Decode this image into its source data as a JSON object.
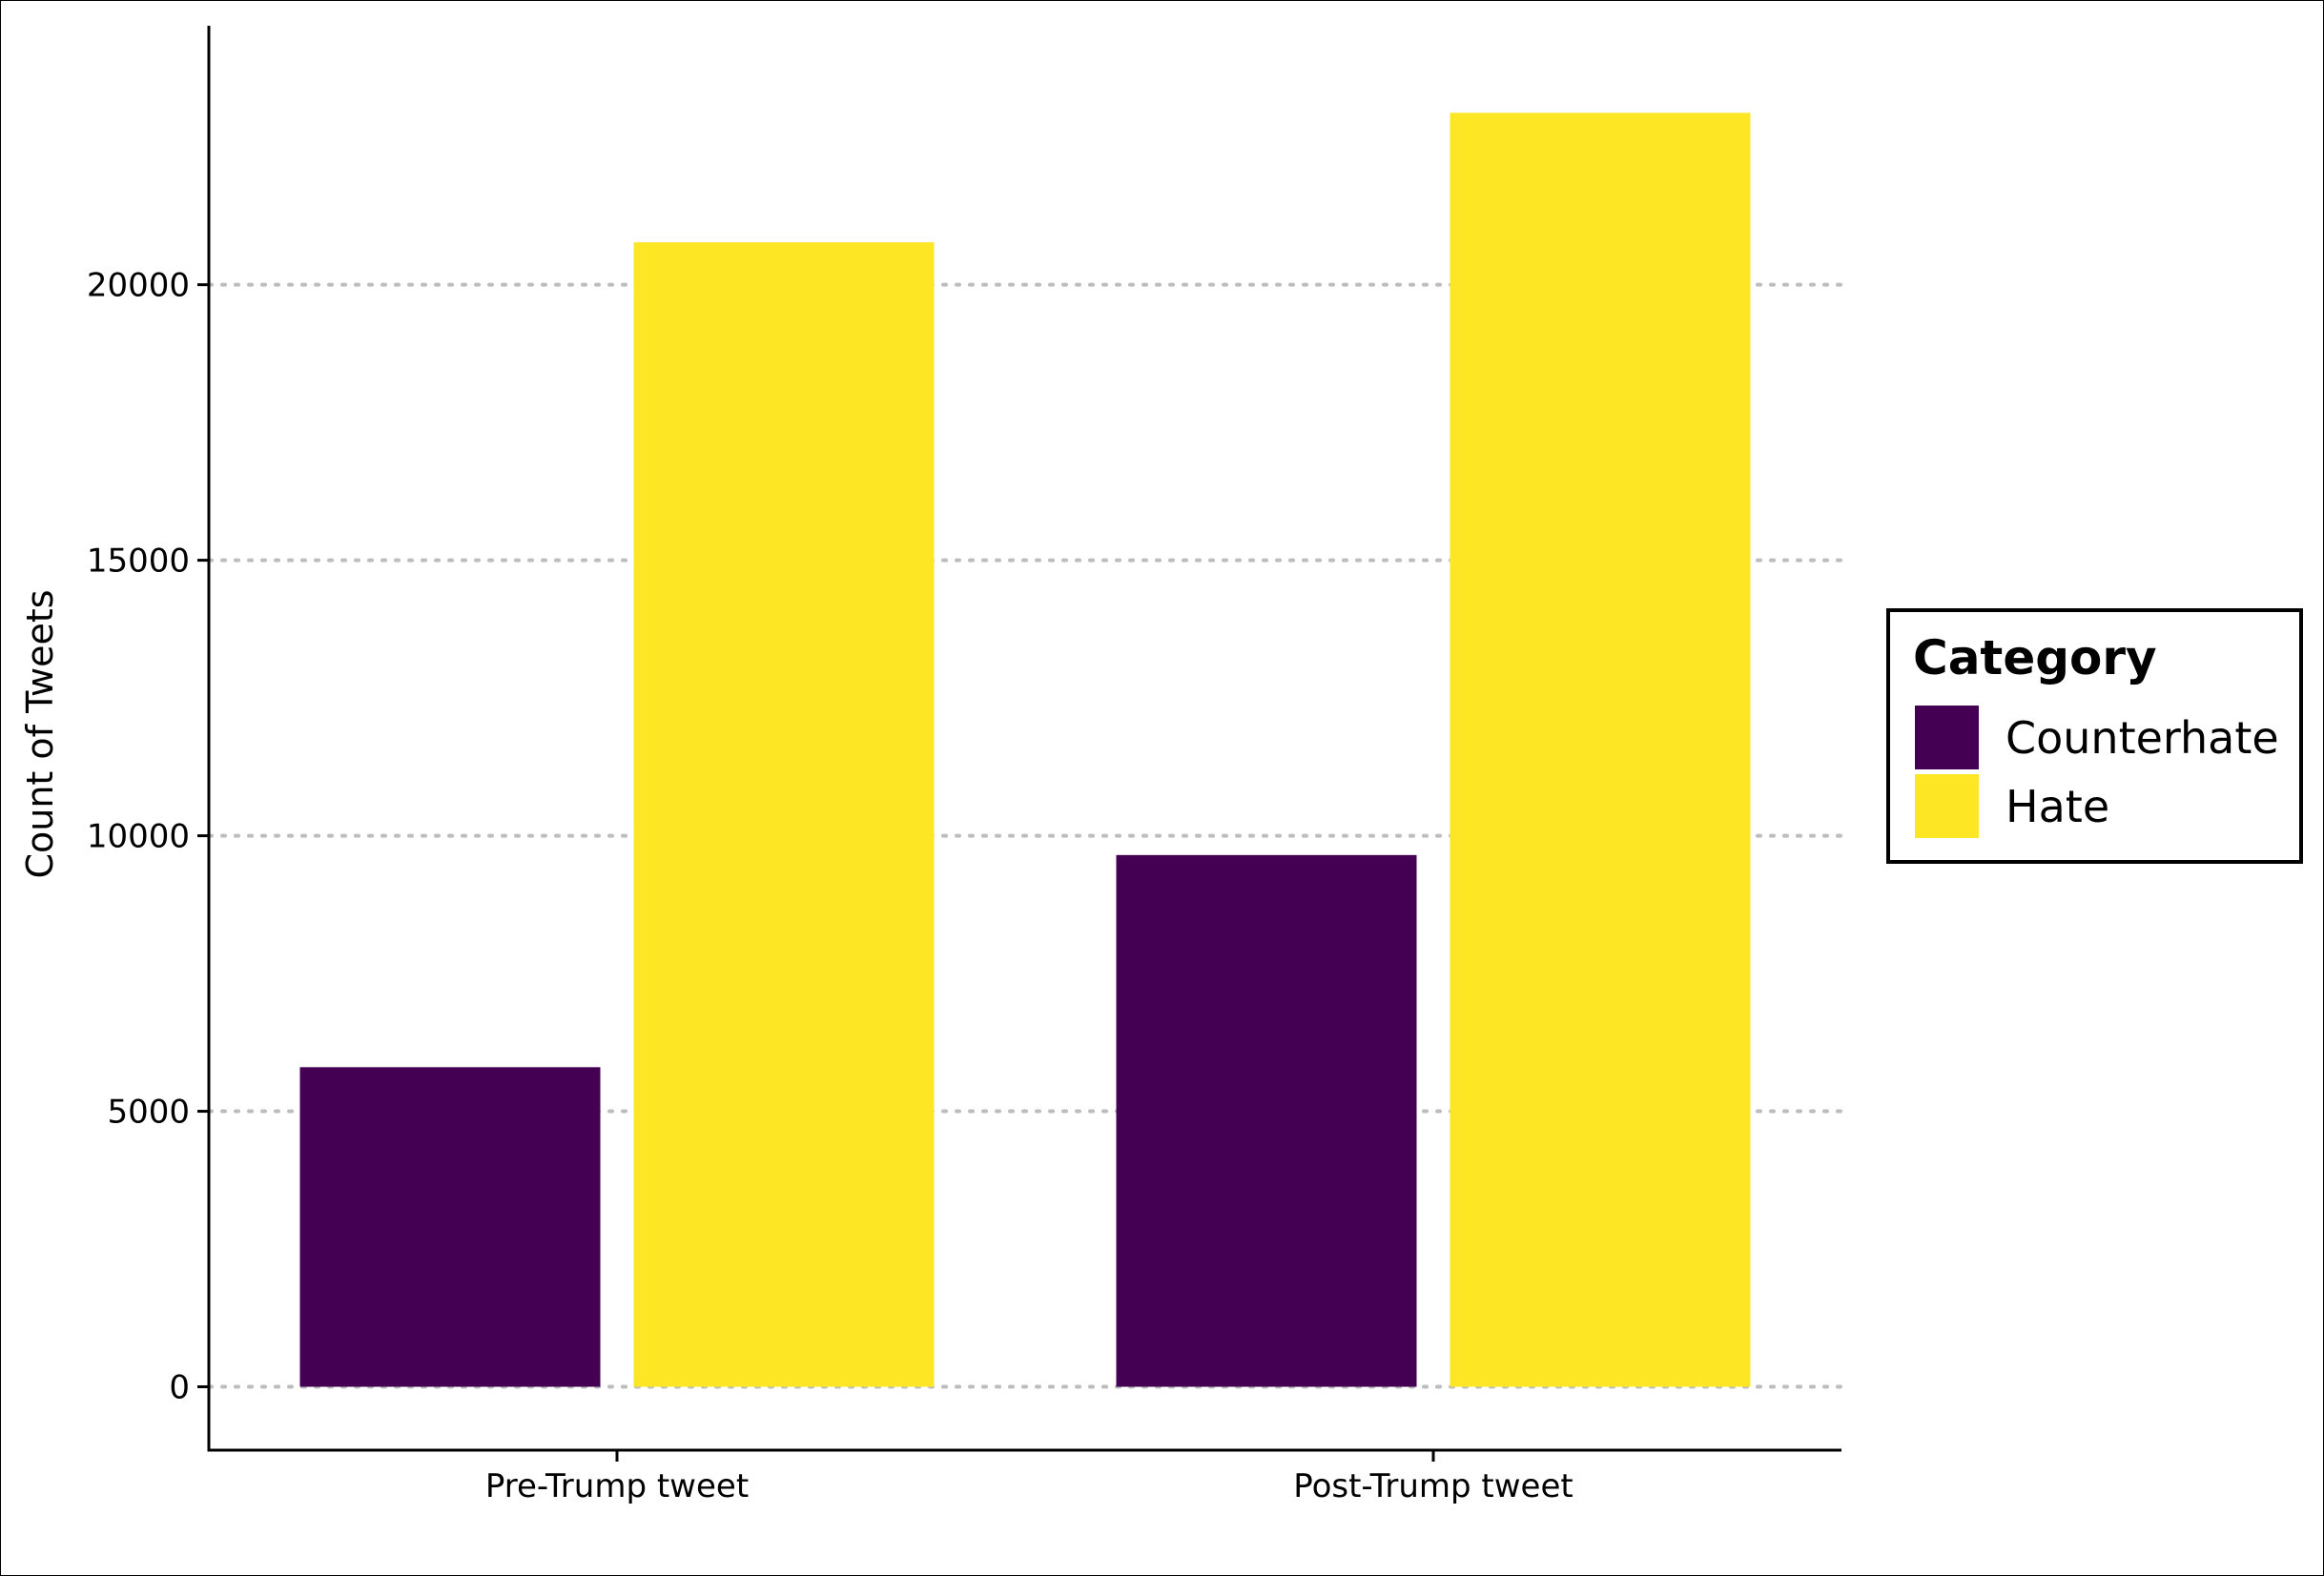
{
  "chart_data": {
    "type": "bar",
    "title": "",
    "xlabel": "",
    "ylabel": "Count of Tweets",
    "categories": [
      "Pre-Trump tweet",
      "Post-Trump tweet"
    ],
    "series": [
      {
        "name": "Counterhate",
        "color": "#440154",
        "values": [
          5800,
          9650
        ]
      },
      {
        "name": "Hate",
        "color": "#FDE725",
        "values": [
          20770,
          23120
        ]
      }
    ],
    "yticks": [
      0,
      5000,
      10000,
      15000,
      20000
    ],
    "ytick_labels": [
      "0",
      "5000",
      "10000",
      "15000",
      "20000"
    ],
    "ylim": [
      -1150,
      24700
    ],
    "grid": "horizontal dotted",
    "legend": {
      "title": "Category",
      "placement": "right"
    }
  }
}
